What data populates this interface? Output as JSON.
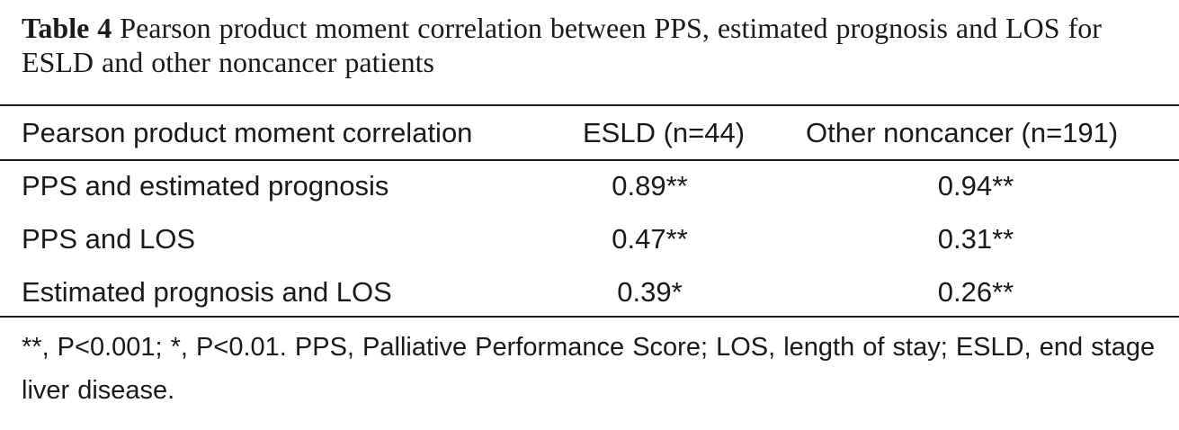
{
  "caption": {
    "label": "Table 4",
    "text": "Pearson product moment correlation between PPS, estimated prognosis and LOS for ESLD and other noncancer patients"
  },
  "table": {
    "headers": [
      "Pearson product moment correlation",
      "ESLD (n=44)",
      "Other noncancer (n=191)"
    ],
    "rows": [
      [
        "PPS and estimated prognosis",
        "0.89**",
        "0.94**"
      ],
      [
        "PPS and LOS",
        "0.47**",
        "0.31**"
      ],
      [
        "Estimated prognosis and LOS",
        "0.39*",
        "0.26**"
      ]
    ]
  },
  "footnote": "**, P<0.001; *, P<0.01. PPS, Palliative Performance Score; LOS, length of stay; ESLD, end stage liver disease."
}
